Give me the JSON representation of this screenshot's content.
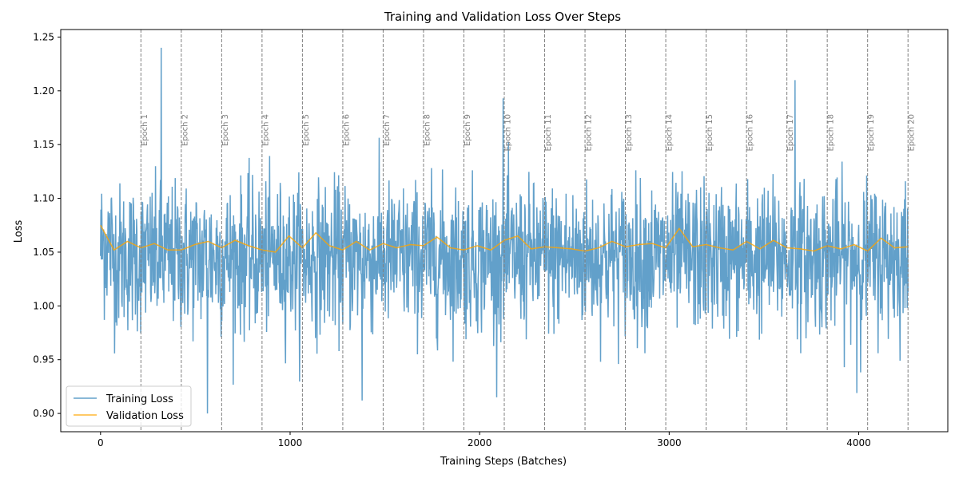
{
  "chart_data": {
    "type": "line",
    "title": "Training and Validation Loss Over Steps",
    "xlabel": "Training Steps (Batches)",
    "ylabel": "Loss",
    "xlim": [
      -210,
      4470
    ],
    "ylim": [
      0.883,
      1.257
    ],
    "x_ticks": [
      0,
      1000,
      2000,
      3000,
      4000
    ],
    "x_tick_labels": [
      "0",
      "1000",
      "2000",
      "3000",
      "4000"
    ],
    "y_ticks": [
      0.9,
      0.95,
      1.0,
      1.05,
      1.1,
      1.15,
      1.2,
      1.25
    ],
    "y_tick_labels": [
      "0.90",
      "0.95",
      "1.00",
      "1.05",
      "1.10",
      "1.15",
      "1.20",
      "1.25"
    ],
    "grid": false,
    "legend_position": "lower-left",
    "colors": {
      "training": "#1f77b4",
      "validation": "#ffa500",
      "epoch_line": "#808080"
    },
    "epoch_markers": [
      {
        "label": "Epoch 1",
        "x": 213
      },
      {
        "label": "Epoch 2",
        "x": 426
      },
      {
        "label": "Epoch 3",
        "x": 639
      },
      {
        "label": "Epoch 4",
        "x": 852
      },
      {
        "label": "Epoch 5",
        "x": 1065
      },
      {
        "label": "Epoch 6",
        "x": 1278
      },
      {
        "label": "Epoch 7",
        "x": 1491
      },
      {
        "label": "Epoch 8",
        "x": 1704
      },
      {
        "label": "Epoch 9",
        "x": 1917
      },
      {
        "label": "Epoch 10",
        "x": 2130
      },
      {
        "label": "Epoch 11",
        "x": 2343
      },
      {
        "label": "Epoch 12",
        "x": 2556
      },
      {
        "label": "Epoch 13",
        "x": 2769
      },
      {
        "label": "Epoch 14",
        "x": 2982
      },
      {
        "label": "Epoch 15",
        "x": 3195
      },
      {
        "label": "Epoch 16",
        "x": 3408
      },
      {
        "label": "Epoch 17",
        "x": 3621
      },
      {
        "label": "Epoch 18",
        "x": 3834
      },
      {
        "label": "Epoch 19",
        "x": 4047
      },
      {
        "label": "Epoch 20",
        "x": 4260
      }
    ],
    "series": [
      {
        "name": "Training Loss",
        "x_start": 0,
        "x_end": 4260,
        "approx_mean": 1.045,
        "approx_range": [
          0.9,
          1.24
        ],
        "notable_points": [
          {
            "x": 320,
            "y": 1.24
          },
          {
            "x": 565,
            "y": 0.9
          },
          {
            "x": 3665,
            "y": 1.21
          },
          {
            "x": 2125,
            "y": 1.193
          },
          {
            "x": 1380,
            "y": 0.912
          },
          {
            "x": 3990,
            "y": 0.919
          }
        ]
      },
      {
        "name": "Validation Loss",
        "x": [
          0,
          71,
          142,
          213,
          284,
          355,
          426,
          497,
          568,
          639,
          710,
          781,
          852,
          923,
          994,
          1065,
          1136,
          1207,
          1278,
          1349,
          1420,
          1491,
          1562,
          1633,
          1704,
          1775,
          1846,
          1917,
          1988,
          2059,
          2130,
          2201,
          2272,
          2343,
          2414,
          2485,
          2556,
          2627,
          2698,
          2769,
          2840,
          2911,
          2982,
          3053,
          3124,
          3195,
          3266,
          3337,
          3408,
          3479,
          3550,
          3621,
          3692,
          3763,
          3834,
          3905,
          3976,
          4047,
          4118,
          4189,
          4260
        ],
        "values": [
          1.075,
          1.052,
          1.06,
          1.054,
          1.058,
          1.052,
          1.052,
          1.057,
          1.06,
          1.054,
          1.061,
          1.056,
          1.052,
          1.05,
          1.065,
          1.054,
          1.068,
          1.056,
          1.052,
          1.06,
          1.052,
          1.058,
          1.054,
          1.057,
          1.056,
          1.064,
          1.054,
          1.052,
          1.056,
          1.052,
          1.061,
          1.065,
          1.053,
          1.055,
          1.054,
          1.053,
          1.051,
          1.054,
          1.06,
          1.055,
          1.057,
          1.058,
          1.054,
          1.072,
          1.055,
          1.057,
          1.054,
          1.052,
          1.06,
          1.053,
          1.061,
          1.054,
          1.053,
          1.051,
          1.056,
          1.053,
          1.057,
          1.051,
          1.063,
          1.054,
          1.055
        ]
      }
    ]
  }
}
